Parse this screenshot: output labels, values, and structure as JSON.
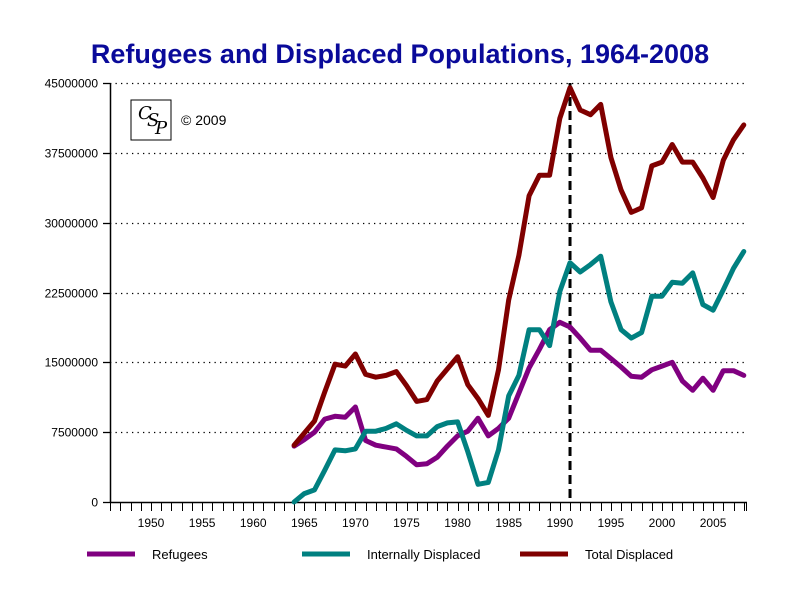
{
  "chart_data": {
    "type": "line",
    "title": "Refugees and Displaced Populations, 1964-2008",
    "xlabel": "",
    "ylabel": "",
    "xlim": [
      1946,
      2008
    ],
    "ylim": [
      0,
      45000000
    ],
    "y_ticks": [
      0,
      7500000,
      15000000,
      22500000,
      30000000,
      37500000,
      45000000
    ],
    "y_tick_labels": [
      "0",
      "7500000",
      "15000000",
      "22500000",
      "30000000",
      "37500000",
      "45000000"
    ],
    "x_ticks": [
      1950,
      1955,
      1960,
      1965,
      1970,
      1975,
      1980,
      1985,
      1990,
      1995,
      2000,
      2005
    ],
    "x_tick_labels": [
      "1950",
      "1955",
      "1960",
      "1965",
      "1970",
      "1975",
      "1980",
      "1985",
      "1990",
      "1995",
      "2000",
      "2005"
    ],
    "grid": "horizontal-dotted",
    "legend_position": "bottom",
    "annotations": [
      {
        "type": "vertical-dashed-line",
        "x": 1991
      },
      {
        "type": "logo",
        "text": "CSP"
      },
      {
        "type": "text",
        "text": "© 2009"
      }
    ],
    "x": [
      1964,
      1965,
      1966,
      1967,
      1968,
      1969,
      1970,
      1971,
      1972,
      1973,
      1974,
      1975,
      1976,
      1977,
      1978,
      1979,
      1980,
      1981,
      1982,
      1983,
      1984,
      1985,
      1986,
      1987,
      1988,
      1989,
      1990,
      1991,
      1992,
      1993,
      1994,
      1995,
      1996,
      1997,
      1998,
      1999,
      2000,
      2001,
      2002,
      2003,
      2004,
      2005,
      2006,
      2007,
      2008
    ],
    "series": [
      {
        "name": "Refugees",
        "color": "#800080",
        "values": [
          6000000,
          6700000,
          7500000,
          8900000,
          9200000,
          9100000,
          10200000,
          6600000,
          6100000,
          5900000,
          5700000,
          4900000,
          4000000,
          4100000,
          4800000,
          6000000,
          7100000,
          7600000,
          9000000,
          7100000,
          7900000,
          9000000,
          11700000,
          14400000,
          16400000,
          18500000,
          19300000,
          18800000,
          17600000,
          16300000,
          16300000,
          15400000,
          14500000,
          13500000,
          13400000,
          14200000,
          14600000,
          15000000,
          13000000,
          12000000,
          13300000,
          12000000,
          14100000,
          14100000,
          13600000
        ]
      },
      {
        "name": "Internally Displaced",
        "color": "#008080",
        "values": [
          0,
          900000,
          1300000,
          3400000,
          5600000,
          5500000,
          5700000,
          7600000,
          7600000,
          7900000,
          8400000,
          7700000,
          7100000,
          7100000,
          8100000,
          8500000,
          8600000,
          5400000,
          1900000,
          2100000,
          5600000,
          11400000,
          13600000,
          18500000,
          18500000,
          16800000,
          22600000,
          25700000,
          24700000,
          25500000,
          26400000,
          21500000,
          18500000,
          17600000,
          18200000,
          22100000,
          22100000,
          23600000,
          23500000,
          24600000,
          21200000,
          20600000,
          22800000,
          25100000,
          26900000
        ]
      },
      {
        "name": "Total Displaced",
        "color": "#800000",
        "values": [
          6100000,
          7400000,
          8700000,
          11800000,
          14800000,
          14600000,
          15900000,
          13700000,
          13400000,
          13600000,
          14000000,
          12500000,
          10800000,
          11000000,
          13000000,
          14300000,
          15600000,
          12600000,
          11100000,
          9300000,
          14200000,
          21700000,
          26500000,
          32900000,
          35100000,
          35100000,
          41200000,
          44500000,
          42100000,
          41600000,
          42700000,
          37000000,
          33500000,
          31100000,
          31600000,
          36100000,
          36500000,
          38400000,
          36500000,
          36500000,
          34800000,
          32700000,
          36700000,
          38900000,
          40500000
        ]
      }
    ]
  },
  "logo": {
    "text_c": "C",
    "text_s": "S",
    "text_p": "P"
  },
  "copyright": "© 2009"
}
